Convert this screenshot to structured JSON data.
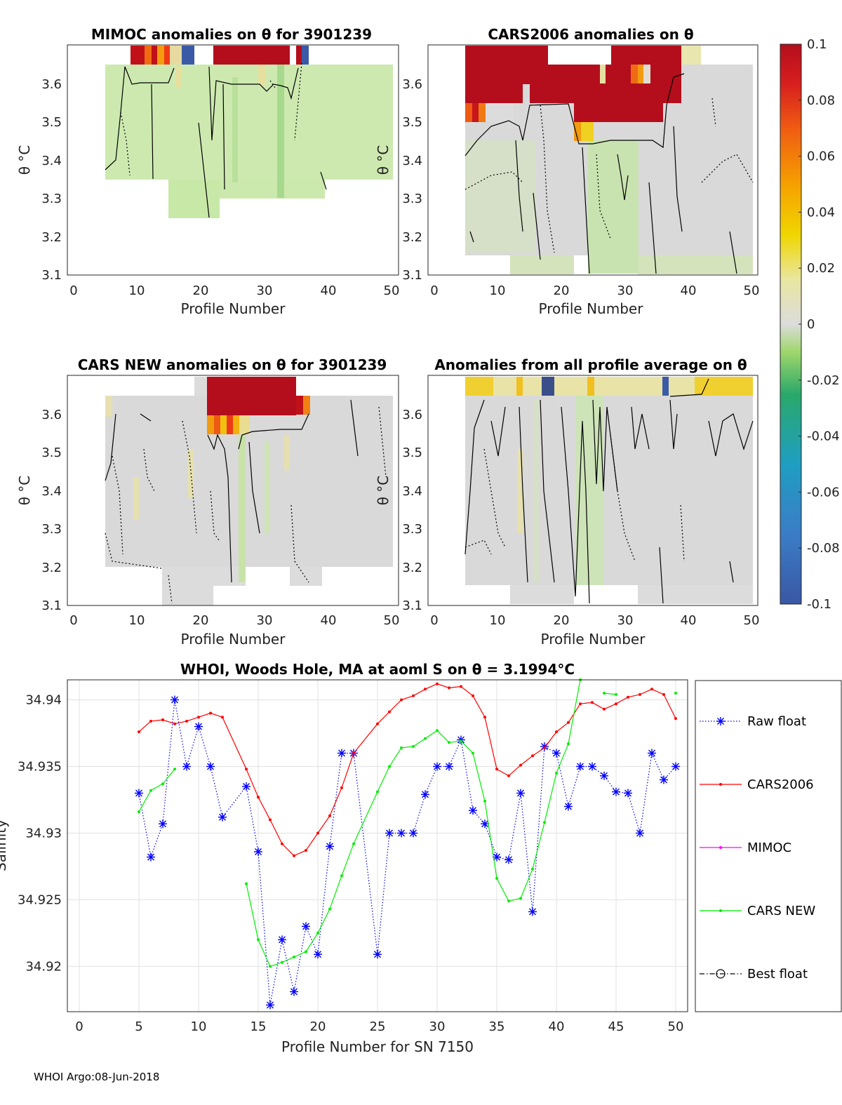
{
  "panels": [
    {
      "title": "MIMOC anomalies on θ  for 3901239",
      "xlabel": "Profile Number",
      "ylabel": "θ °C",
      "xticks": [
        "0",
        "10",
        "20",
        "30",
        "40",
        "50"
      ],
      "yticks": [
        "3.1",
        "3.2",
        "3.3",
        "3.4",
        "3.5",
        "3.6"
      ],
      "xlim": [
        -1,
        51
      ],
      "ylim": [
        3.1,
        3.7
      ]
    },
    {
      "title": "CARS2006 anomalies on θ",
      "xlabel": "Profile Number",
      "ylabel": "θ °C",
      "xticks": [
        "0",
        "10",
        "20",
        "30",
        "40",
        "50"
      ],
      "yticks": [
        "3.1",
        "3.2",
        "3.3",
        "3.4",
        "3.5",
        "3.6"
      ],
      "xlim": [
        -1,
        51
      ],
      "ylim": [
        3.1,
        3.7
      ]
    },
    {
      "title": "CARS NEW anomalies on θ for 3901239",
      "xlabel": "Profile Number",
      "ylabel": "θ °C",
      "xticks": [
        "0",
        "10",
        "20",
        "30",
        "40",
        "50"
      ],
      "yticks": [
        "3.1",
        "3.2",
        "3.3",
        "3.4",
        "3.5",
        "3.6"
      ],
      "xlim": [
        -1,
        51
      ],
      "ylim": [
        3.1,
        3.7
      ]
    },
    {
      "title": "Anomalies from all profile average on θ",
      "xlabel": "Profile Number",
      "ylabel": "θ °C",
      "xticks": [
        "0",
        "10",
        "20",
        "30",
        "40",
        "50"
      ],
      "yticks": [
        "3.1",
        "3.2",
        "3.3",
        "3.4",
        "3.5",
        "3.6"
      ],
      "xlim": [
        -1,
        51
      ],
      "ylim": [
        3.1,
        3.7
      ]
    }
  ],
  "colorbar": {
    "ticks": [
      "0.1",
      "0.08",
      "0.06",
      "0.04",
      "0.02",
      "0",
      "-0.02",
      "-0.04",
      "-0.06",
      "-0.08",
      "-0.1"
    ],
    "range": [
      -0.1,
      0.1
    ]
  },
  "chart_data": {
    "type": "line",
    "title": "WHOI, Woods Hole, MA at aoml S on θ = 3.1994°C",
    "xlabel": "Profile Number for SN 7150",
    "ylabel": "Salinity",
    "xlim": [
      -1,
      51
    ],
    "ylim": [
      34.9166,
      34.9415
    ],
    "xticks": [
      "0",
      "5",
      "10",
      "15",
      "20",
      "25",
      "30",
      "35",
      "40",
      "45",
      "50"
    ],
    "yticks": [
      "34.92",
      "34.925",
      "34.93",
      "34.935",
      "34.94"
    ],
    "grid": true,
    "legend_position": "right",
    "series": [
      {
        "name": "Raw float",
        "color": "#0000ff",
        "style": "dotted-asterisk",
        "segments": [
          [
            [
              5,
              34.933
            ],
            [
              6,
              34.9282
            ],
            [
              7,
              34.9307
            ],
            [
              8,
              34.94
            ],
            [
              9,
              34.935
            ],
            [
              10,
              34.938
            ],
            [
              11,
              34.935
            ],
            [
              12,
              34.9312
            ],
            [
              14,
              34.9335
            ],
            [
              15,
              34.9286
            ],
            [
              16,
              34.9171
            ],
            [
              17,
              34.922
            ],
            [
              18,
              34.9181
            ],
            [
              19,
              34.923
            ],
            [
              20,
              34.9209
            ],
            [
              21,
              34.929
            ],
            [
              22,
              34.936
            ],
            [
              23,
              34.936
            ],
            [
              25,
              34.9209
            ],
            [
              26,
              34.93
            ],
            [
              27,
              34.93
            ],
            [
              28,
              34.93
            ],
            [
              29,
              34.9329
            ],
            [
              30,
              34.935
            ],
            [
              31,
              34.935
            ],
            [
              32,
              34.937
            ],
            [
              33,
              34.9317
            ],
            [
              34,
              34.9307
            ],
            [
              35,
              34.9282
            ],
            [
              36,
              34.928
            ],
            [
              37,
              34.933
            ],
            [
              38,
              34.9241
            ],
            [
              39,
              34.9365
            ],
            [
              40,
              34.936
            ],
            [
              41,
              34.932
            ],
            [
              42,
              34.935
            ],
            [
              43,
              34.935
            ],
            [
              44,
              34.9343
            ],
            [
              45,
              34.9331
            ],
            [
              46,
              34.933
            ],
            [
              47,
              34.93
            ],
            [
              48,
              34.936
            ],
            [
              49,
              34.934
            ],
            [
              50,
              34.935
            ]
          ]
        ]
      },
      {
        "name": "CARS2006",
        "color": "#ff0000",
        "style": "solid-dot",
        "segments": [
          [
            [
              5,
              34.9376
            ],
            [
              6,
              34.9384
            ],
            [
              7,
              34.9385
            ],
            [
              8,
              34.9382
            ],
            [
              9,
              34.9384
            ],
            [
              10,
              34.9387
            ],
            [
              11,
              34.939
            ],
            [
              12,
              34.9387
            ],
            [
              14,
              34.9348
            ],
            [
              15,
              34.9327
            ],
            [
              16,
              34.931
            ],
            [
              17,
              34.9292
            ],
            [
              18,
              34.9283
            ],
            [
              19,
              34.9287
            ],
            [
              20,
              34.93
            ],
            [
              21,
              34.9313
            ],
            [
              22,
              34.9334
            ],
            [
              23,
              34.936
            ],
            [
              25,
              34.9382
            ],
            [
              26,
              34.9391
            ],
            [
              27,
              34.94
            ],
            [
              28,
              34.9403
            ],
            [
              29,
              34.9408
            ],
            [
              30,
              34.9412
            ],
            [
              31,
              34.9409
            ],
            [
              32,
              34.941
            ],
            [
              33,
              34.9403
            ],
            [
              34,
              34.9387
            ],
            [
              35,
              34.9348
            ],
            [
              36,
              34.9343
            ],
            [
              37,
              34.9351
            ],
            [
              38,
              34.9358
            ],
            [
              39,
              34.9364
            ],
            [
              40,
              34.9376
            ],
            [
              41,
              34.9383
            ],
            [
              42,
              34.9397
            ],
            [
              43,
              34.9398
            ],
            [
              44,
              34.9393
            ],
            [
              45,
              34.9397
            ],
            [
              46,
              34.9402
            ],
            [
              47,
              34.9404
            ],
            [
              48,
              34.9408
            ],
            [
              49,
              34.9404
            ],
            [
              50,
              34.9386
            ]
          ]
        ]
      },
      {
        "name": "MIMOC",
        "color": "#ff00ff",
        "style": "solid-dot",
        "segments": []
      },
      {
        "name": "CARS NEW",
        "color": "#00ee00",
        "style": "solid-dot",
        "segments": [
          [
            [
              5,
              34.9316
            ],
            [
              6,
              34.9332
            ],
            [
              7,
              34.9337
            ],
            [
              8,
              34.9348
            ]
          ],
          [
            [
              14,
              34.9262
            ],
            [
              15,
              34.922
            ],
            [
              16,
              34.92
            ],
            [
              17,
              34.9203
            ],
            [
              18,
              34.9207
            ],
            [
              19,
              34.9211
            ],
            [
              20,
              34.9225
            ],
            [
              21,
              34.9243
            ],
            [
              22,
              34.9268
            ],
            [
              23,
              34.9292
            ],
            [
              25,
              34.9331
            ],
            [
              26,
              34.935
            ],
            [
              27,
              34.9364
            ],
            [
              28,
              34.9365
            ],
            [
              29,
              34.9371
            ],
            [
              30,
              34.9377
            ],
            [
              31,
              34.9368
            ],
            [
              32,
              34.9369
            ],
            [
              33,
              34.936
            ],
            [
              34,
              34.9324
            ],
            [
              35,
              34.9266
            ],
            [
              36,
              34.9249
            ],
            [
              37,
              34.9251
            ],
            [
              38,
              34.9273
            ],
            [
              39,
              34.9308
            ],
            [
              40,
              34.9345
            ],
            [
              41,
              34.9367
            ],
            [
              42,
              34.9415
            ]
          ],
          [
            [
              44,
              34.9405
            ],
            [
              45,
              34.9404
            ]
          ],
          [
            [
              50,
              34.9405
            ]
          ]
        ]
      },
      {
        "name": "Best float",
        "color": "#000000",
        "style": "dashdot-circle",
        "segments": []
      }
    ]
  },
  "footer": "WHOI Argo:08-Jun-2018"
}
